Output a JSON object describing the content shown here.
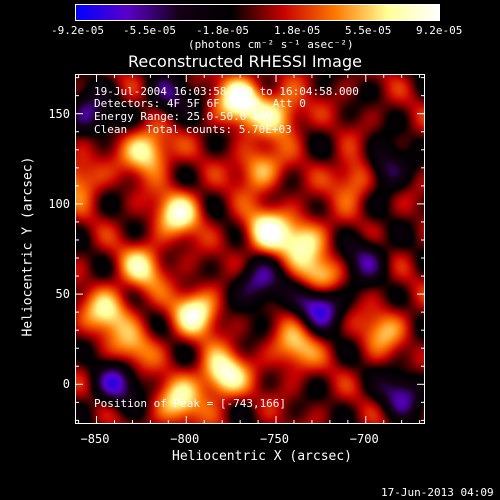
{
  "colorbar": {
    "tick_labels": [
      "-9.2e-05",
      "-5.5e-05",
      "-1.8e-05",
      "1.8e-05",
      "5.5e-05",
      "9.2e-05"
    ],
    "units_label": "(photons cm⁻² s⁻¹ asec⁻²)"
  },
  "chart_data": {
    "type": "heatmap",
    "title": "Reconstructed RHESSI Image",
    "xlabel": "Heliocentric X (arcsec)",
    "ylabel": "Heliocentric Y (arcsec)",
    "xlim": [
      -862,
      -667
    ],
    "ylim": [
      -22,
      172
    ],
    "x_ticks": [
      -850,
      -800,
      -750,
      -700
    ],
    "y_ticks": [
      0,
      50,
      100,
      150
    ],
    "x_tick_labels": [
      "−850",
      "−800",
      "−750",
      "−700"
    ],
    "y_tick_labels": [
      "0",
      "50",
      "100",
      "150"
    ],
    "zlim": [
      -9.2e-05,
      9.2e-05
    ],
    "colormap": [
      "#0000ff",
      "#5a00c8",
      "#140014",
      "#000000",
      "#c80000",
      "#ff7800",
      "#ffff96",
      "#ffffff"
    ],
    "annotations": {
      "date_range": "19-Jul-2004 16:03:58.000 to 16:04:58.000",
      "detectors": "Detectors: 4F 5F 6F 7F 8F, Att 0",
      "energy_range": "Energy Range: 25.0-50.0 keV",
      "algorithm": "Clean",
      "total_counts": "Total counts: 5.70E+03",
      "peak_position": "Position of Peak = [-743,166]"
    },
    "peak": {
      "x": -743,
      "y": 166
    },
    "hotspots": [
      {
        "x": -770,
        "y": 158,
        "v": 1.0
      },
      {
        "x": -748,
        "y": 150,
        "v": 0.7
      },
      {
        "x": -822,
        "y": 130,
        "v": 0.85
      },
      {
        "x": -805,
        "y": 95,
        "v": 0.8
      },
      {
        "x": -755,
        "y": 85,
        "v": 0.85
      },
      {
        "x": -735,
        "y": 80,
        "v": 0.7
      },
      {
        "x": -825,
        "y": 65,
        "v": 0.65
      },
      {
        "x": -725,
        "y": 60,
        "v": 0.7
      },
      {
        "x": -845,
        "y": 40,
        "v": 0.7
      },
      {
        "x": -795,
        "y": 40,
        "v": 0.85
      },
      {
        "x": -780,
        "y": 5,
        "v": 0.95
      },
      {
        "x": -805,
        "y": -10,
        "v": 0.7
      },
      {
        "x": -830,
        "y": 20,
        "v": 0.5
      },
      {
        "x": -705,
        "y": 115,
        "v": 0.65
      },
      {
        "x": -690,
        "y": 30,
        "v": 0.5
      },
      {
        "x": -740,
        "y": 20,
        "v": 0.6
      },
      {
        "x": -860,
        "y": 115,
        "v": 0.55
      },
      {
        "x": -760,
        "y": 120,
        "v": 0.6
      }
    ],
    "coldspots": [
      {
        "x": -725,
        "y": 45,
        "v": -0.9
      },
      {
        "x": -690,
        "y": 120,
        "v": -0.7
      },
      {
        "x": -855,
        "y": 150,
        "v": -0.6
      },
      {
        "x": -760,
        "y": 55,
        "v": -0.7
      },
      {
        "x": -680,
        "y": -5,
        "v": -0.6
      },
      {
        "x": -840,
        "y": 0,
        "v": -0.7
      },
      {
        "x": -700,
        "y": 70,
        "v": -0.55
      },
      {
        "x": -810,
        "y": 160,
        "v": -0.5
      }
    ]
  },
  "timestamp": "17-Jun-2013 04:09"
}
